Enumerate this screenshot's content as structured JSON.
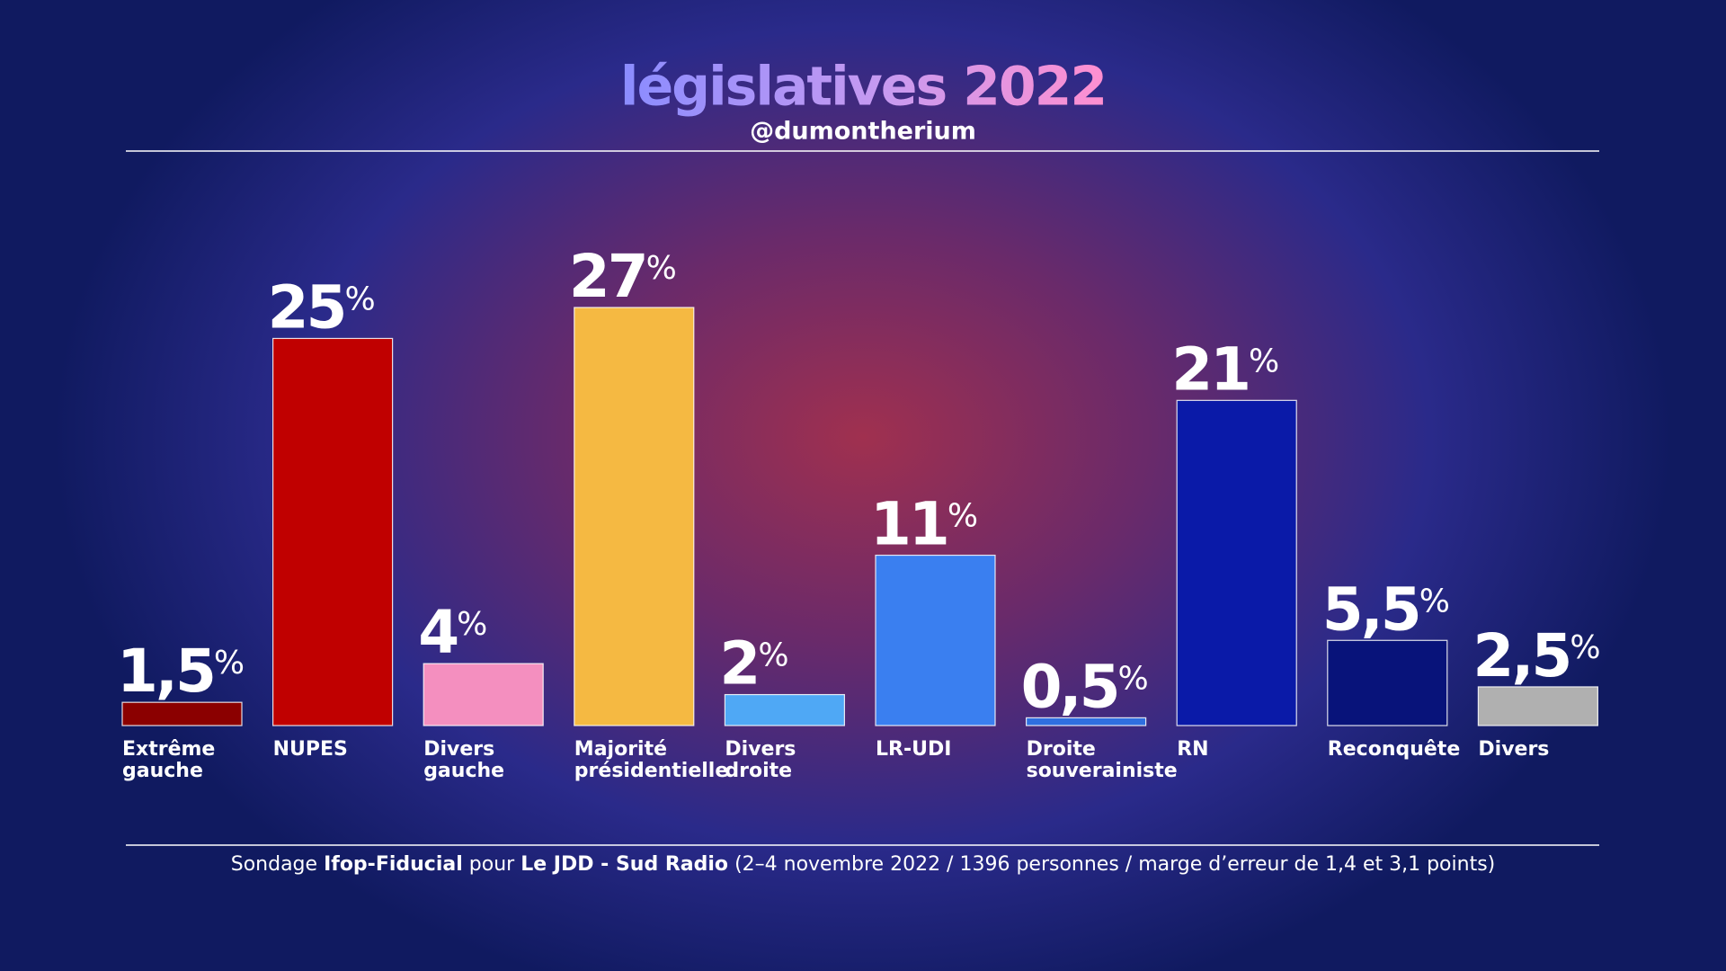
{
  "chart_data": {
    "type": "bar",
    "title": "législatives 2022",
    "subtitle": "@dumontherium",
    "categories": [
      "Extrême gauche",
      "NUPES",
      "Divers gauche",
      "Majorité présidentielle",
      "Divers droite",
      "LR-UDI",
      "Droite souverainiste",
      "RN",
      "Reconquête",
      "Divers"
    ],
    "values": [
      1.5,
      25,
      4,
      27,
      2,
      11,
      0.5,
      21,
      5.5,
      2.5
    ],
    "value_labels": [
      "1,5%",
      "25%",
      "4%",
      "27%",
      "2%",
      "11%",
      "0,5%",
      "21%",
      "5,5%",
      "2,5%"
    ],
    "colors": [
      "#8b0000",
      "#c00000",
      "#f48fbf",
      "#f5b942",
      "#4fa8f5",
      "#3a7ff0",
      "#2f6fe0",
      "#0a1aa8",
      "#08137a",
      "#b0b0b0"
    ],
    "source": {
      "prefix": "Sondage",
      "pollster": "Ifop-Fiducial",
      "mid": "pour",
      "client": "Le JDD - Sud Radio",
      "details": "(2–4 novembre 2022 / 1396 personnes / marge d’erreur de 1,4 et 3,1 points)"
    }
  }
}
